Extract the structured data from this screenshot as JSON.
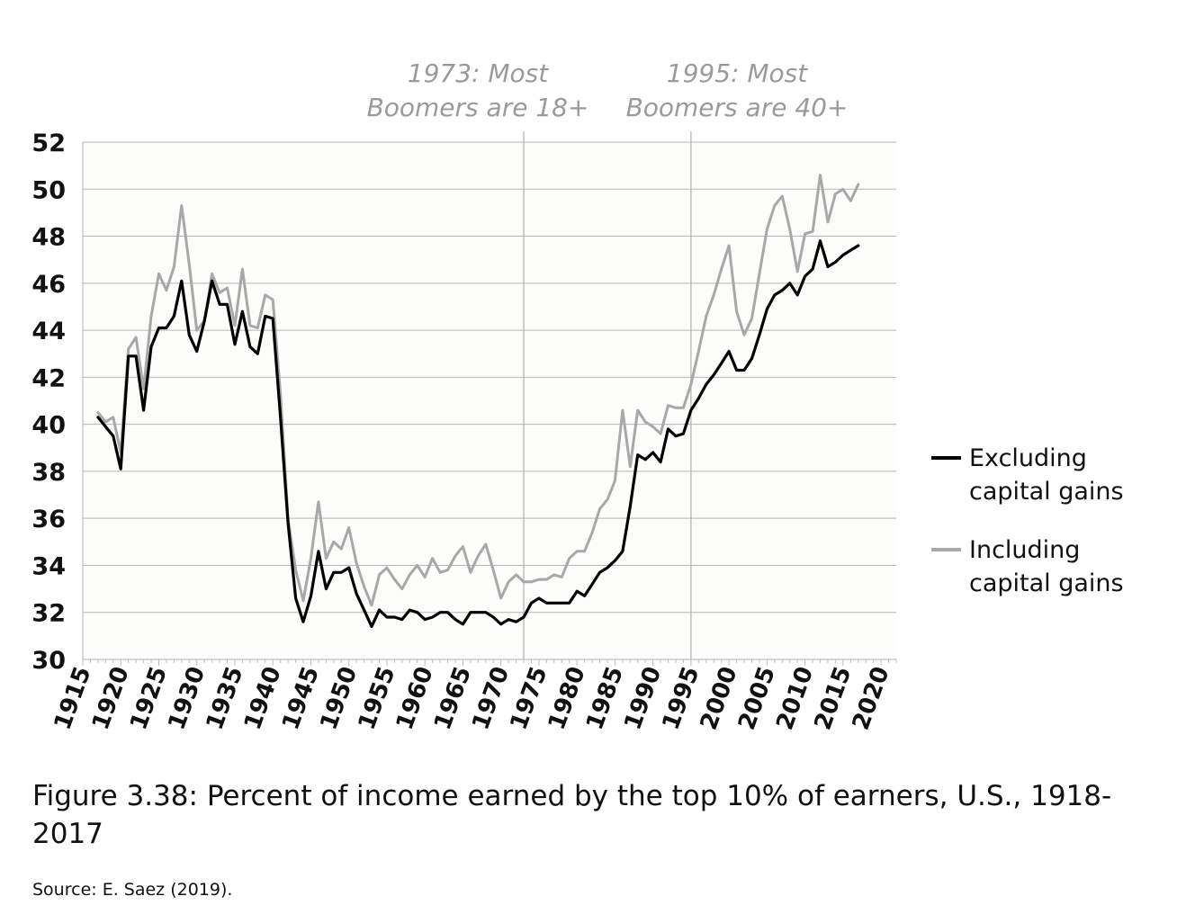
{
  "chart_data": {
    "type": "line",
    "ylim": [
      30,
      52
    ],
    "yticks": [
      "30",
      "32",
      "34",
      "36",
      "38",
      "40",
      "42",
      "44",
      "46",
      "48",
      "50",
      "52"
    ],
    "xlim": [
      1915,
      2022
    ],
    "xticks": [
      "1915",
      "1920",
      "1925",
      "1930",
      "1935",
      "1940",
      "1945",
      "1950",
      "1955",
      "1960",
      "1965",
      "1970",
      "1975",
      "1980",
      "1985",
      "1990",
      "1995",
      "2000",
      "2005",
      "2010",
      "2015",
      "2020"
    ],
    "grid": "horizontal",
    "legend_position": "right",
    "vlines": [
      {
        "x": 1973,
        "label_line1": "1973: Most",
        "label_line2": "Boomers are 18+"
      },
      {
        "x": 1995,
        "label_line1": "1995: Most",
        "label_line2": "Boomers are 40+"
      }
    ],
    "series": [
      {
        "name_line1": "Excluding",
        "name_line2": "capital gains",
        "color": "#000000",
        "x": [
          1917,
          1918,
          1919,
          1920,
          1921,
          1922,
          1923,
          1924,
          1925,
          1926,
          1927,
          1928,
          1929,
          1930,
          1931,
          1932,
          1933,
          1934,
          1935,
          1936,
          1937,
          1938,
          1939,
          1940,
          1941,
          1942,
          1943,
          1944,
          1945,
          1946,
          1947,
          1948,
          1949,
          1950,
          1951,
          1952,
          1953,
          1954,
          1955,
          1956,
          1957,
          1958,
          1959,
          1960,
          1961,
          1962,
          1963,
          1964,
          1965,
          1966,
          1967,
          1968,
          1969,
          1970,
          1971,
          1972,
          1973,
          1974,
          1975,
          1976,
          1977,
          1978,
          1979,
          1980,
          1981,
          1982,
          1983,
          1984,
          1985,
          1986,
          1987,
          1988,
          1989,
          1990,
          1991,
          1992,
          1993,
          1994,
          1995,
          1996,
          1997,
          1998,
          1999,
          2000,
          2001,
          2002,
          2003,
          2004,
          2005,
          2006,
          2007,
          2008,
          2009,
          2010,
          2011,
          2012,
          2013,
          2014,
          2015,
          2016,
          2017
        ],
        "values": [
          40.3,
          39.9,
          39.5,
          38.1,
          42.9,
          42.9,
          40.6,
          43.3,
          44.1,
          44.1,
          44.6,
          46.1,
          43.8,
          43.1,
          44.4,
          46.1,
          45.1,
          45.1,
          43.4,
          44.8,
          43.3,
          43.0,
          44.6,
          44.5,
          40.3,
          35.8,
          32.6,
          31.6,
          32.7,
          34.6,
          33.0,
          33.7,
          33.7,
          33.9,
          32.8,
          32.1,
          31.4,
          32.1,
          31.8,
          31.8,
          31.7,
          32.1,
          32.0,
          31.7,
          31.8,
          32.0,
          32.0,
          31.7,
          31.5,
          32.0,
          32.0,
          32.0,
          31.8,
          31.5,
          31.7,
          31.6,
          31.8,
          32.4,
          32.6,
          32.4,
          32.4,
          32.4,
          32.4,
          32.9,
          32.7,
          33.2,
          33.7,
          33.9,
          34.2,
          34.6,
          36.5,
          38.7,
          38.5,
          38.8,
          38.4,
          39.8,
          39.5,
          39.6,
          40.6,
          41.1,
          41.7,
          42.1,
          42.6,
          43.1,
          42.3,
          42.3,
          42.8,
          43.8,
          44.9,
          45.5,
          45.7,
          46.0,
          45.5,
          46.3,
          46.6,
          47.8,
          46.7,
          46.9,
          47.2,
          47.4,
          47.6
        ]
      },
      {
        "name_line1": "Including",
        "name_line2": "capital gains",
        "color": "#a8a8a8",
        "x": [
          1917,
          1918,
          1919,
          1920,
          1921,
          1922,
          1923,
          1924,
          1925,
          1926,
          1927,
          1928,
          1929,
          1930,
          1931,
          1932,
          1933,
          1934,
          1935,
          1936,
          1937,
          1938,
          1939,
          1940,
          1941,
          1942,
          1943,
          1944,
          1945,
          1946,
          1947,
          1948,
          1949,
          1950,
          1951,
          1952,
          1953,
          1954,
          1955,
          1956,
          1957,
          1958,
          1959,
          1960,
          1961,
          1962,
          1963,
          1964,
          1965,
          1966,
          1967,
          1968,
          1969,
          1970,
          1971,
          1972,
          1973,
          1974,
          1975,
          1976,
          1977,
          1978,
          1979,
          1980,
          1981,
          1982,
          1983,
          1984,
          1985,
          1986,
          1987,
          1988,
          1989,
          1990,
          1991,
          1992,
          1993,
          1994,
          1995,
          1996,
          1997,
          1998,
          1999,
          2000,
          2001,
          2002,
          2003,
          2004,
          2005,
          2006,
          2007,
          2008,
          2009,
          2010,
          2011,
          2012,
          2013,
          2014,
          2015,
          2016,
          2017
        ],
        "values": [
          40.5,
          40.1,
          40.3,
          38.8,
          43.2,
          43.7,
          41.5,
          44.6,
          46.4,
          45.7,
          46.7,
          49.3,
          46.8,
          44.0,
          44.4,
          46.4,
          45.6,
          45.8,
          44.2,
          46.6,
          44.2,
          44.1,
          45.5,
          45.3,
          41.3,
          36.0,
          33.8,
          32.5,
          34.3,
          36.7,
          34.3,
          35.0,
          34.7,
          35.6,
          34.1,
          33.1,
          32.3,
          33.6,
          33.9,
          33.4,
          33.0,
          33.6,
          34.0,
          33.5,
          34.3,
          33.7,
          33.8,
          34.4,
          34.8,
          33.7,
          34.4,
          34.9,
          33.8,
          32.6,
          33.3,
          33.6,
          33.3,
          33.3,
          33.4,
          33.4,
          33.6,
          33.5,
          34.3,
          34.6,
          34.6,
          35.4,
          36.4,
          36.8,
          37.6,
          40.6,
          38.2,
          40.6,
          40.1,
          39.9,
          39.6,
          40.8,
          40.7,
          40.7,
          41.7,
          43.1,
          44.6,
          45.5,
          46.6,
          47.6,
          44.8,
          43.8,
          44.5,
          46.4,
          48.3,
          49.3,
          49.7,
          48.3,
          46.5,
          48.1,
          48.2,
          50.6,
          48.6,
          49.8,
          50.0,
          49.5,
          50.2
        ]
      }
    ]
  },
  "caption": "Figure 3.38: Percent of income earned by the top 10% of earners, U.S., 1918-2017",
  "source": "Source: E. Saez (2019)."
}
